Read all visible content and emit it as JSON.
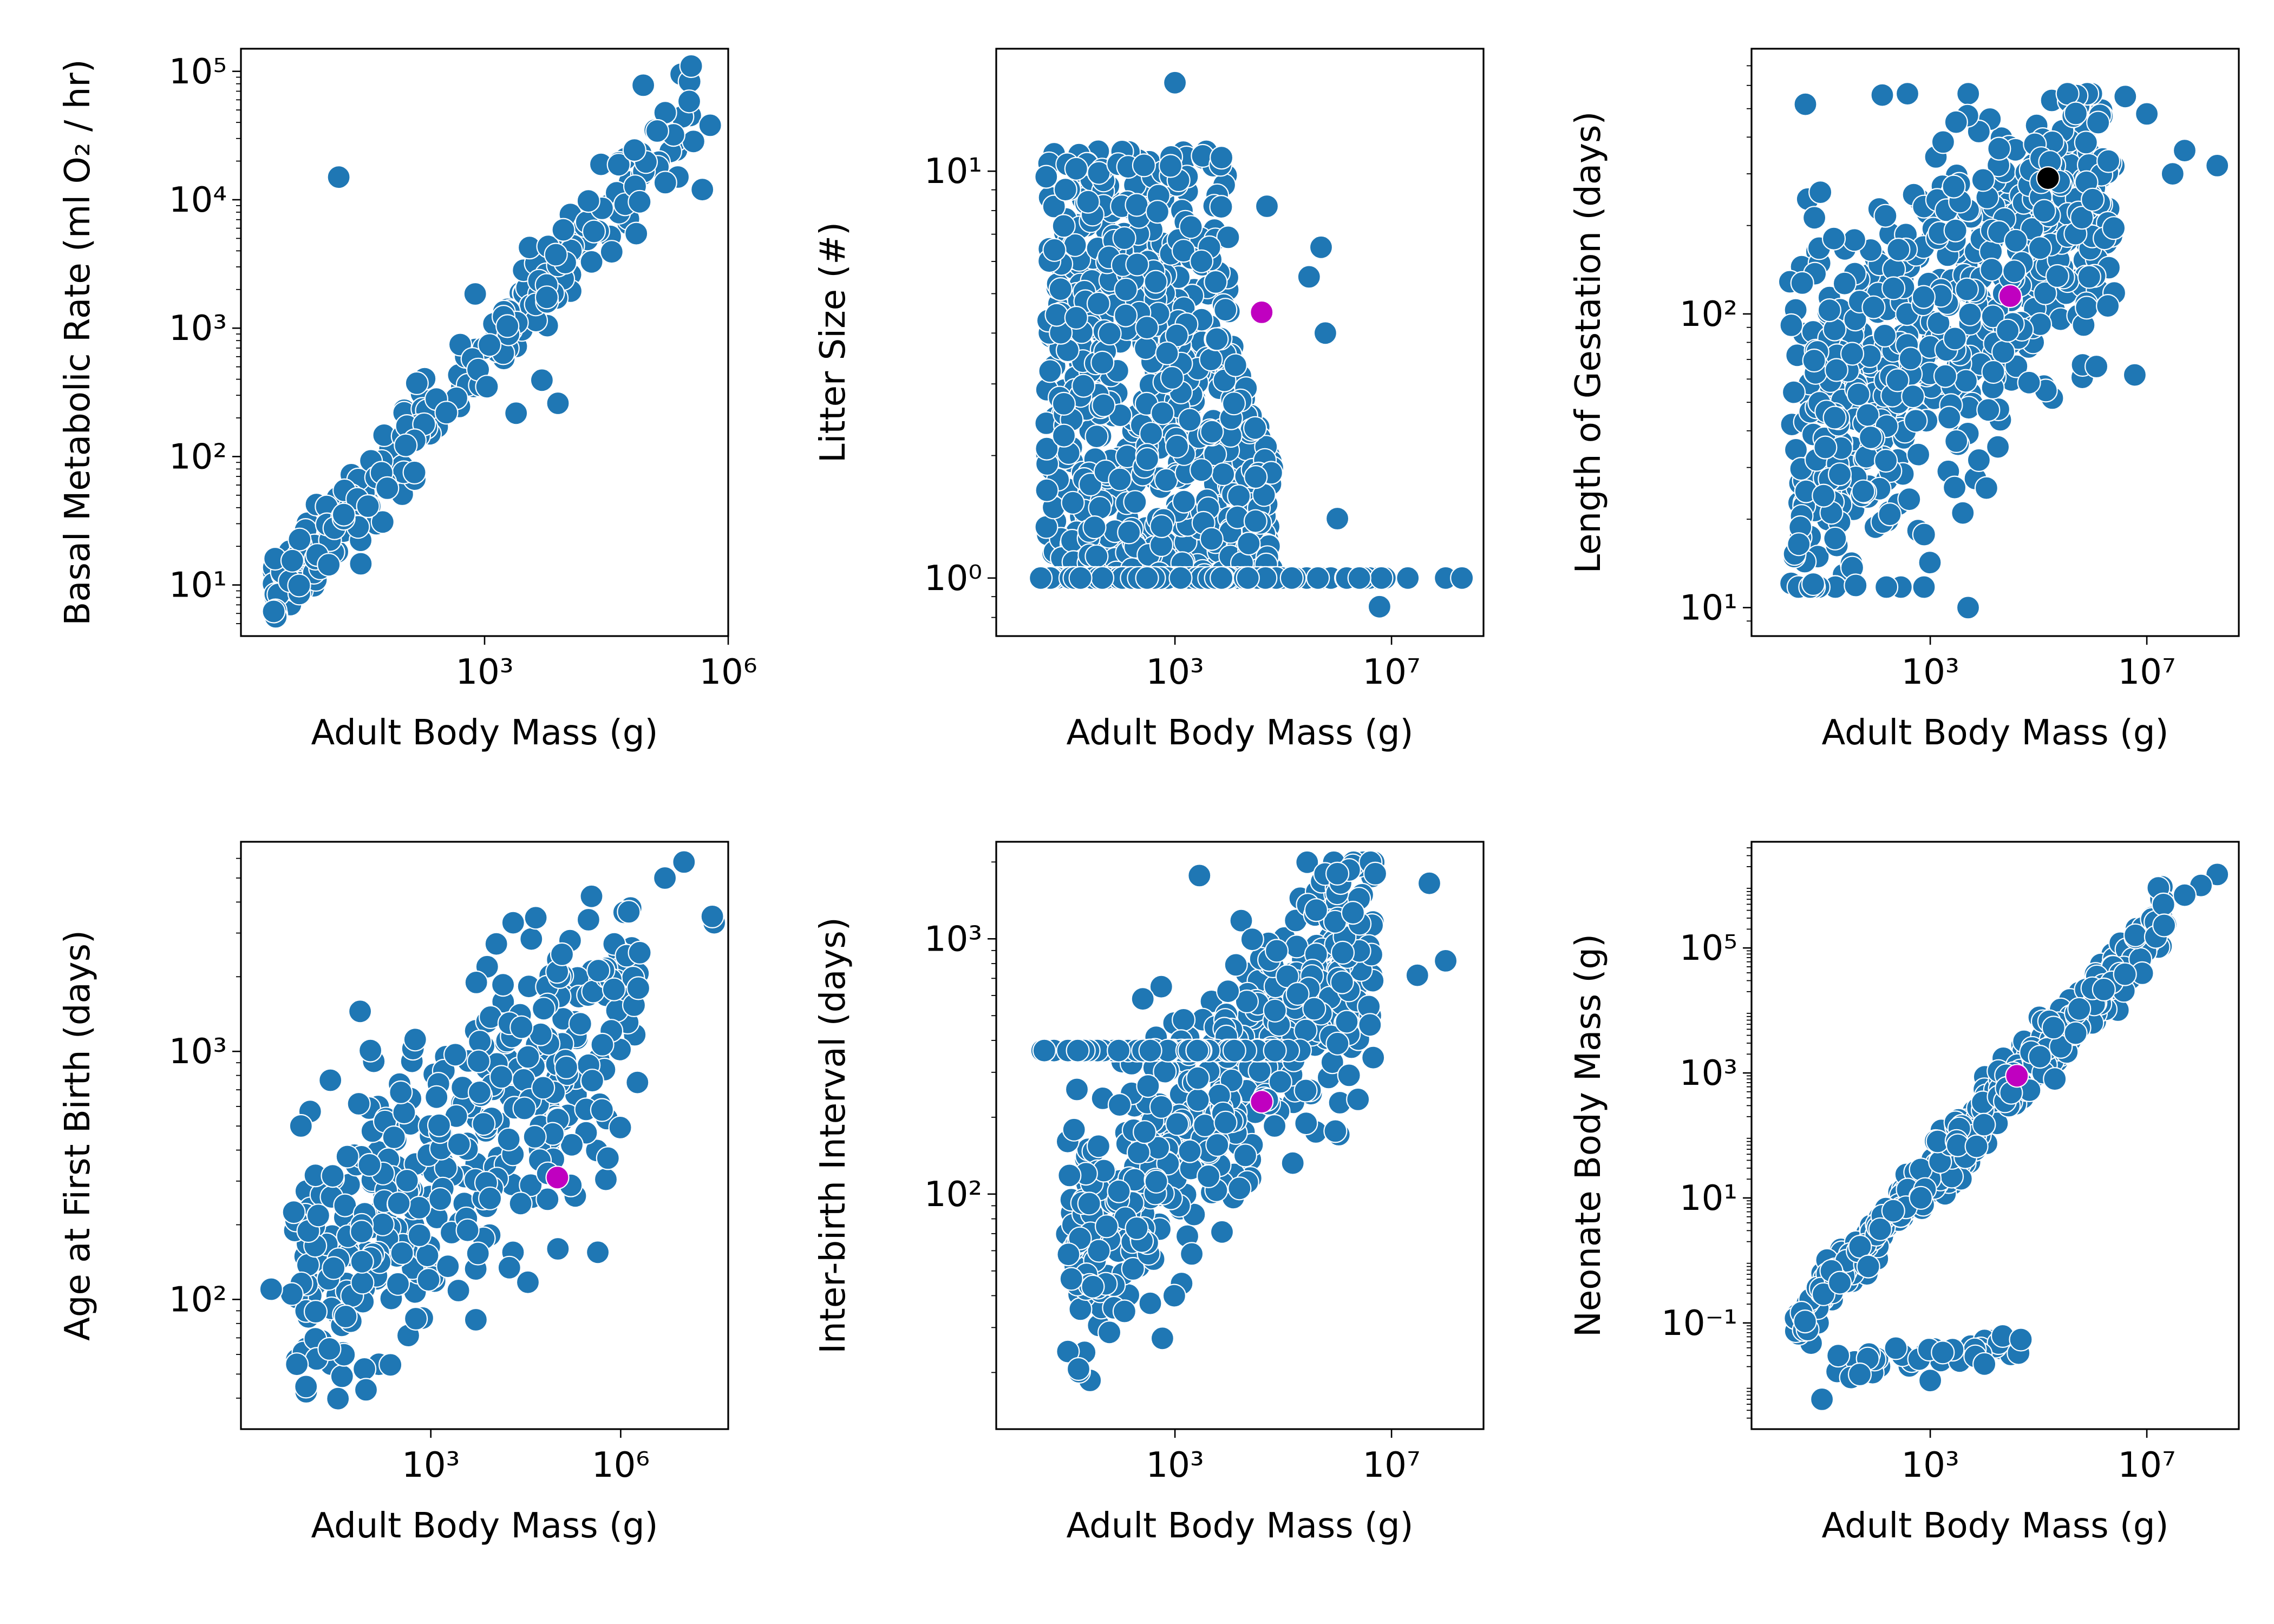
{
  "figure": {
    "point_color": "#1f77b4",
    "highlight_colors": {
      "magenta": "#c000c0",
      "black": "#000000"
    }
  },
  "chart_data": [
    {
      "type": "scatter",
      "xlabel": "Adult Body Mass (g)",
      "ylabel": "Basal Metabolic Rate (ml O₂ / hr)",
      "x_scale": "log",
      "y_scale": "log",
      "xlim": [
        1,
        1000000
      ],
      "ylim": [
        4,
        150000
      ],
      "x_ticks": [
        {
          "value": 1000,
          "label": "10³"
        },
        {
          "value": 1000000,
          "label": "10⁶"
        }
      ],
      "y_ticks": [
        {
          "value": 10,
          "label": "10¹"
        },
        {
          "value": 100,
          "label": "10²"
        },
        {
          "value": 1000,
          "label": "10³"
        },
        {
          "value": 10000,
          "label": "10⁴"
        },
        {
          "value": 100000,
          "label": "10⁵"
        }
      ],
      "trend": {
        "x_range": [
          2.5,
          400000
        ],
        "a": 4.5,
        "b": 0.72,
        "spread_dex": 0.18
      },
      "extra_points": [
        [
          16,
          15000
        ],
        [
          90000,
          78000
        ],
        [
          8000,
          260
        ],
        [
          480000,
          12000
        ],
        [
          350000,
          110000
        ],
        [
          600000,
          38000
        ]
      ],
      "highlights": []
    },
    {
      "type": "scatter",
      "xlabel": "Adult Body Mass (g)",
      "ylabel": "Litter Size (#)",
      "x_scale": "log",
      "y_scale": "log",
      "xlim": [
        0.5,
        500000000
      ],
      "ylim": [
        0.72,
        20
      ],
      "x_ticks": [
        {
          "value": 1000,
          "label": "10³"
        },
        {
          "value": 10000000,
          "label": "10⁷"
        }
      ],
      "y_ticks": [
        {
          "value": 1,
          "label": "10⁰"
        },
        {
          "value": 10,
          "label": "10¹"
        }
      ],
      "extra_points": [
        [
          1000,
          16.5
        ],
        [
          50000,
          8.2
        ],
        [
          300000,
          5.5
        ],
        [
          500000,
          6.5
        ],
        [
          600000,
          4.0
        ],
        [
          1000000,
          1.4
        ],
        [
          6000000,
          0.85
        ],
        [
          20000000,
          1.0
        ],
        [
          100000000,
          1.0
        ],
        [
          200000000,
          1.0
        ]
      ],
      "highlights": [
        {
          "x": 40000,
          "y": 4.5,
          "color": "magenta"
        }
      ]
    },
    {
      "type": "scatter",
      "xlabel": "Adult Body Mass (g)",
      "ylabel": "Length of Gestation (days)",
      "x_scale": "log",
      "y_scale": "log",
      "xlim": [
        0.5,
        500000000
      ],
      "ylim": [
        8,
        800
      ],
      "x_ticks": [
        {
          "value": 1000,
          "label": "10³"
        },
        {
          "value": 10000000,
          "label": "10⁷"
        }
      ],
      "y_ticks": [
        {
          "value": 10,
          "label": "10¹"
        },
        {
          "value": 100,
          "label": "10²"
        }
      ],
      "extra_points": [
        [
          5000,
          10
        ],
        [
          4000,
          21
        ],
        [
          6000000,
          62
        ],
        [
          1000000,
          245
        ],
        [
          4000000,
          550
        ],
        [
          10000000,
          480
        ],
        [
          50000000,
          360
        ],
        [
          200000000,
          320
        ],
        [
          30000000,
          300
        ],
        [
          3000,
          450
        ]
      ],
      "highlights": [
        {
          "x": 150000,
          "y": 290,
          "color": "black"
        },
        {
          "x": 30000,
          "y": 115,
          "color": "magenta"
        }
      ]
    },
    {
      "type": "scatter",
      "xlabel": "Adult Body Mass (g)",
      "ylabel": "Age at First Birth (days)",
      "x_scale": "log",
      "y_scale": "log",
      "xlim": [
        1,
        50000000
      ],
      "ylim": [
        30,
        7000
      ],
      "x_ticks": [
        {
          "value": 1000,
          "label": "10³"
        },
        {
          "value": 1000000,
          "label": "10⁶"
        }
      ],
      "y_ticks": [
        {
          "value": 100,
          "label": "10²"
        },
        {
          "value": 1000,
          "label": "10³"
        }
      ],
      "extra_points": [
        [
          3,
          110
        ],
        [
          5000000,
          5000
        ],
        [
          10000000,
          5800
        ],
        [
          30000000,
          3300
        ],
        [
          28000000,
          3500
        ],
        [
          20000,
          3300
        ],
        [
          2000000,
          2500
        ]
      ],
      "highlights": [
        {
          "x": 100000,
          "y": 310,
          "color": "magenta"
        }
      ]
    },
    {
      "type": "scatter",
      "xlabel": "Adult Body Mass (g)",
      "ylabel": "Inter-birth Interval (days)",
      "x_scale": "log",
      "y_scale": "log",
      "xlim": [
        0.5,
        500000000
      ],
      "ylim": [
        12,
        2400
      ],
      "x_ticks": [
        {
          "value": 1000,
          "label": "10³"
        },
        {
          "value": 10000000,
          "label": "10⁷"
        }
      ],
      "y_ticks": [
        {
          "value": 100,
          "label": "10²"
        },
        {
          "value": 1000,
          "label": "10³"
        }
      ],
      "extra_points": [
        [
          5000000,
          1800
        ],
        [
          50000000,
          1650
        ],
        [
          100000000,
          820
        ],
        [
          30000000,
          720
        ],
        [
          4000000,
          460
        ],
        [
          1000000,
          1800
        ]
      ],
      "highlights": [
        {
          "x": 40000,
          "y": 230,
          "color": "magenta"
        }
      ]
    },
    {
      "type": "scatter",
      "xlabel": "Adult Body Mass (g)",
      "ylabel": "Neonate Body Mass (g)",
      "x_scale": "log",
      "y_scale": "log",
      "xlim": [
        0.5,
        500000000
      ],
      "ylim": [
        0.002,
        5000000
      ],
      "x_ticks": [
        {
          "value": 1000,
          "label": "10³"
        },
        {
          "value": 10000000,
          "label": "10⁷"
        }
      ],
      "y_ticks": [
        {
          "value": 0.1,
          "label": "10⁻¹"
        },
        {
          "value": 10,
          "label": "10¹"
        },
        {
          "value": 1000,
          "label": "10³"
        },
        {
          "value": 100000,
          "label": "10⁵"
        }
      ],
      "extra_points": [
        [
          200000000,
          1500000
        ],
        [
          100000000,
          1000000
        ],
        [
          50000000,
          700000
        ],
        [
          1000,
          0.012
        ],
        [
          10000,
          0.022
        ],
        [
          200000,
          800
        ],
        [
          20,
          0.03
        ],
        [
          10,
          0.006
        ],
        [
          50,
          0.015
        ]
      ],
      "highlights": [
        {
          "x": 40000,
          "y": 900,
          "color": "magenta"
        }
      ]
    }
  ]
}
